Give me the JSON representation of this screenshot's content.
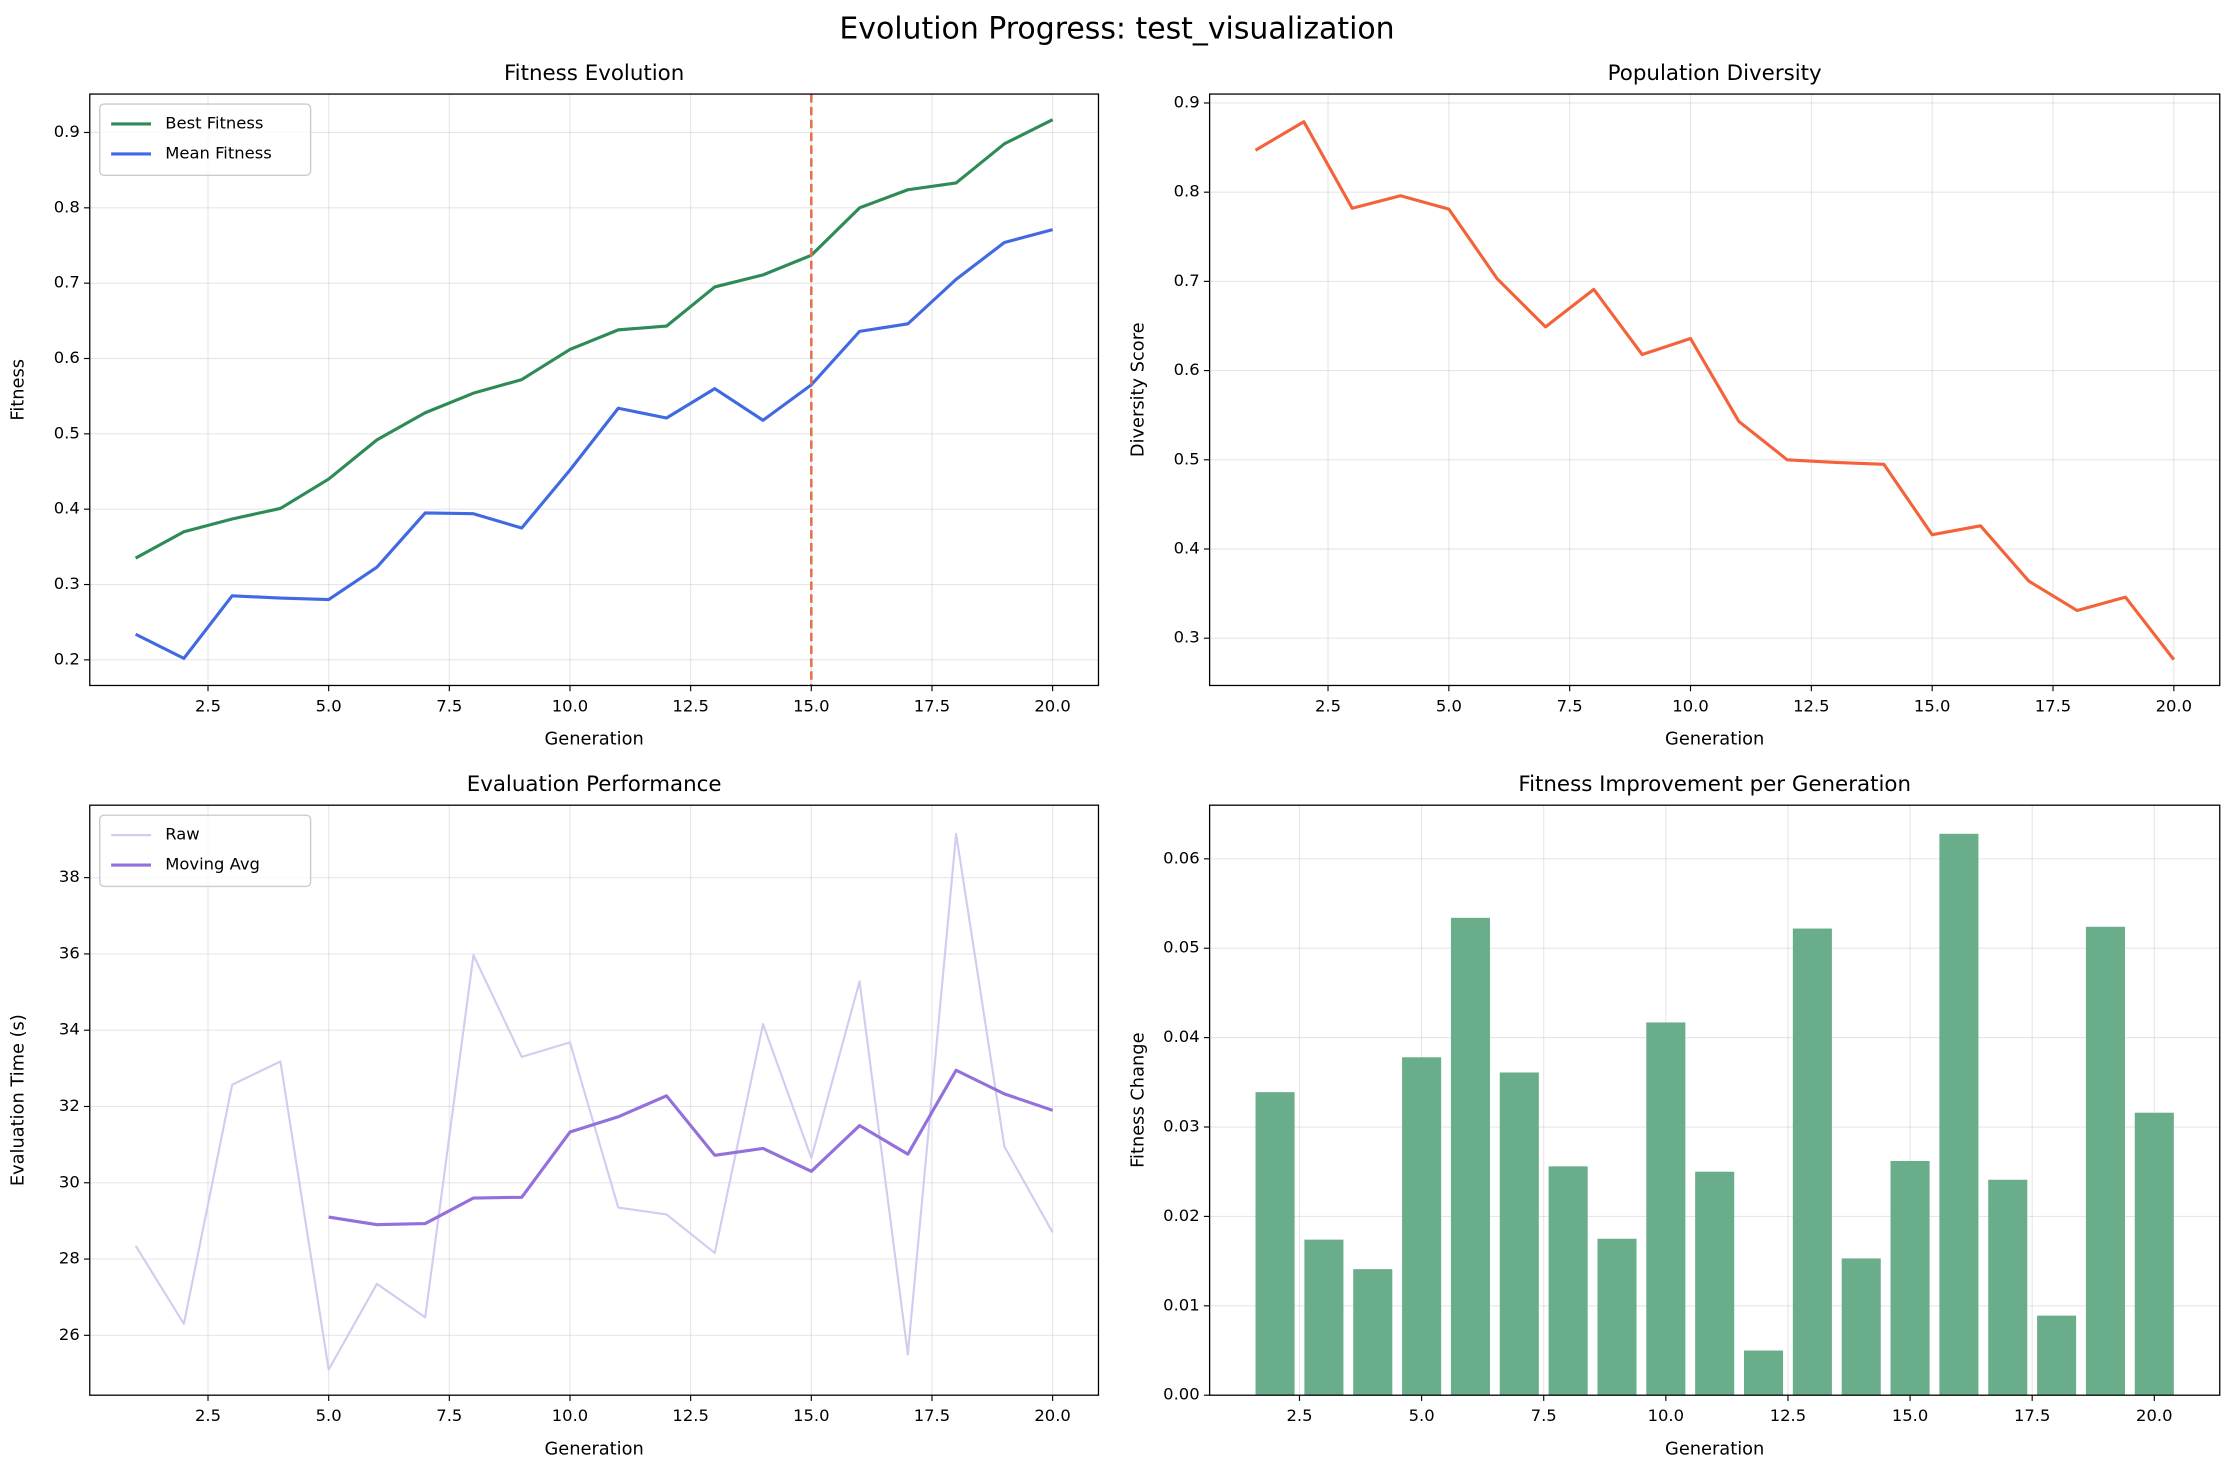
{
  "title": "Evolution Progress: test_visualization",
  "chart_data": [
    {
      "type": "line",
      "title": "Fitness Evolution",
      "xlabel": "Generation",
      "ylabel": "Fitness",
      "x": [
        1,
        2,
        3,
        4,
        5,
        6,
        7,
        8,
        9,
        10,
        11,
        12,
        13,
        14,
        15,
        16,
        17,
        18,
        19,
        20
      ],
      "series": [
        {
          "name": "Best Fitness",
          "color": "#2e8b57",
          "width": 2.2,
          "values": [
            0.335,
            0.37,
            0.387,
            0.401,
            0.44,
            0.492,
            0.528,
            0.554,
            0.572,
            0.612,
            0.638,
            0.643,
            0.695,
            0.711,
            0.737,
            0.8,
            0.824,
            0.833,
            0.885,
            0.917
          ]
        },
        {
          "name": "Mean Fitness",
          "color": "#4169e1",
          "width": 2.2,
          "values": [
            0.234,
            0.202,
            0.285,
            0.282,
            0.28,
            0.323,
            0.395,
            0.394,
            0.375,
            0.452,
            0.534,
            0.521,
            0.56,
            0.518,
            0.565,
            0.636,
            0.646,
            0.705,
            0.754,
            0.771
          ]
        }
      ],
      "vline": {
        "x": 15,
        "color": "#e8704a"
      },
      "xlim": [
        0.05,
        20.95
      ],
      "ylim": [
        0.166,
        0.951
      ],
      "xticks": [
        2.5,
        {
          "value": 5,
          "label": "5.0"
        },
        7.5,
        {
          "value": 10,
          "label": "10.0"
        },
        12.5,
        {
          "value": 15,
          "label": "15.0"
        },
        17.5,
        {
          "value": 20,
          "label": "20.0"
        }
      ],
      "yticks": [
        0.2,
        0.3,
        0.4,
        0.5,
        0.6,
        0.7,
        0.8,
        0.9
      ],
      "grid": true,
      "legend": "upper-left"
    },
    {
      "type": "line",
      "title": "Population Diversity",
      "xlabel": "Generation",
      "ylabel": "Diversity Score",
      "x": [
        1,
        2,
        3,
        4,
        5,
        6,
        7,
        8,
        9,
        10,
        11,
        12,
        13,
        14,
        15,
        16,
        17,
        18,
        19,
        20
      ],
      "series": [
        {
          "color": "#f4623a",
          "width": 2.2,
          "values": [
            0.847,
            0.879,
            0.782,
            0.796,
            0.781,
            0.703,
            0.649,
            0.691,
            0.618,
            0.636,
            0.543,
            0.5,
            0.497,
            0.495,
            0.416,
            0.426,
            0.364,
            0.331,
            0.346,
            0.276
          ]
        }
      ],
      "xlim": [
        0.05,
        20.95
      ],
      "ylim": [
        0.247,
        0.91
      ],
      "xticks": [
        2.5,
        {
          "value": 5,
          "label": "5.0"
        },
        7.5,
        {
          "value": 10,
          "label": "10.0"
        },
        12.5,
        {
          "value": 15,
          "label": "15.0"
        },
        17.5,
        {
          "value": 20,
          "label": "20.0"
        }
      ],
      "yticks": [
        0.3,
        0.4,
        0.5,
        0.6,
        0.7,
        0.8,
        0.9
      ],
      "grid": true
    },
    {
      "type": "line",
      "title": "Evaluation Performance",
      "xlabel": "Generation",
      "ylabel": "Evaluation Time (s)",
      "x": [
        1,
        2,
        3,
        4,
        5,
        6,
        7,
        8,
        9,
        10,
        11,
        12,
        13,
        14,
        15,
        16,
        17,
        18,
        19,
        20
      ],
      "series": [
        {
          "name": "Raw",
          "color": "#d3cbf0",
          "width": 1.5,
          "values": [
            28.35,
            26.3,
            32.57,
            33.18,
            25.1,
            27.35,
            26.47,
            35.97,
            33.3,
            33.68,
            29.35,
            29.17,
            28.16,
            34.16,
            30.65,
            35.28,
            25.5,
            39.15,
            30.95,
            28.7
          ]
        },
        {
          "name": "Moving Avg",
          "color": "#9370db",
          "width": 2.2,
          "values": [
            null,
            null,
            null,
            null,
            29.1,
            28.9,
            28.93,
            29.6,
            29.62,
            31.33,
            31.73,
            32.28,
            30.72,
            30.9,
            30.3,
            31.5,
            30.75,
            32.95,
            32.33,
            31.9
          ]
        }
      ],
      "xlim": [
        0.05,
        20.95
      ],
      "ylim": [
        24.43,
        39.9
      ],
      "xticks": [
        2.5,
        {
          "value": 5,
          "label": "5.0"
        },
        7.5,
        {
          "value": 10,
          "label": "10.0"
        },
        12.5,
        {
          "value": 15,
          "label": "15.0"
        },
        17.5,
        {
          "value": 20,
          "label": "20.0"
        }
      ],
      "yticks": [
        26,
        28,
        30,
        32,
        34,
        36,
        38
      ],
      "grid": true,
      "legend": "upper-left"
    },
    {
      "type": "bar",
      "title": "Fitness Improvement per Generation",
      "xlabel": "Generation",
      "ylabel": "Fitness Change",
      "x": [
        2,
        3,
        4,
        5,
        6,
        7,
        8,
        9,
        10,
        11,
        12,
        13,
        14,
        15,
        16,
        17,
        18,
        19,
        20
      ],
      "values": [
        0.0339,
        0.0174,
        0.0141,
        0.0378,
        0.0534,
        0.0361,
        0.0256,
        0.0175,
        0.0417,
        0.025,
        0.005,
        0.0522,
        0.0153,
        0.0262,
        0.0628,
        0.0241,
        0.0089,
        0.0524,
        0.0316
      ],
      "color": "#6aad8a",
      "bar_width": 0.8,
      "xlim": [
        0.66,
        21.34
      ],
      "ylim": [
        0,
        0.066
      ],
      "xticks": [
        2.5,
        {
          "value": 5,
          "label": "5.0"
        },
        7.5,
        {
          "value": 10,
          "label": "10.0"
        },
        12.5,
        {
          "value": 15,
          "label": "15.0"
        },
        17.5,
        {
          "value": 20,
          "label": "20.0"
        }
      ],
      "yticks": [
        {
          "value": 0,
          "label": "0.00"
        },
        0.01,
        0.02,
        0.03,
        0.04,
        0.05,
        0.06
      ],
      "grid": true
    }
  ]
}
